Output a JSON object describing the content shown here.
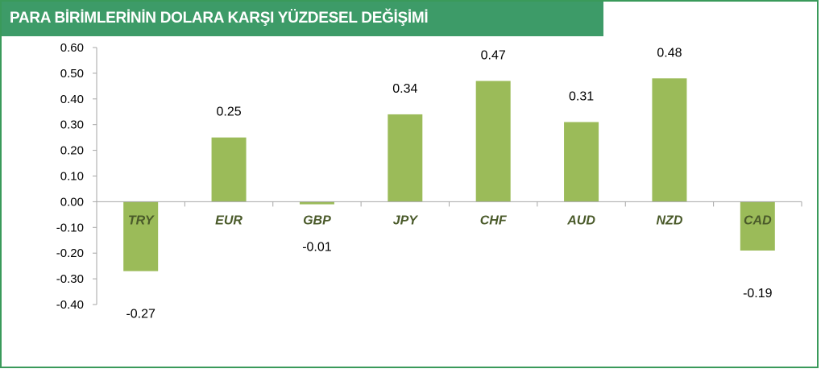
{
  "title": "PARA BİRİMLERİNİN DOLARA KARŞI YÜZDESEL DEĞİŞİMİ",
  "colors": {
    "bar": "#9bbb59",
    "header": "#3d9b68",
    "frame": "#3a9a5a",
    "axis": "#a6a6a6"
  },
  "chart_data": {
    "type": "bar",
    "title": "PARA BİRİMLERİNİN DOLARA KARŞI YÜZDESEL DEĞİŞİMİ",
    "categories": [
      "TRY",
      "EUR",
      "GBP",
      "JPY",
      "CHF",
      "AUD",
      "NZD",
      "CAD"
    ],
    "values": [
      -0.27,
      0.25,
      -0.01,
      0.34,
      0.47,
      0.31,
      0.48,
      -0.19
    ],
    "value_labels": [
      "-0.27",
      "0.25",
      "-0.01",
      "0.34",
      "0.47",
      "0.31",
      "0.48",
      "-0.19"
    ],
    "y_ticks": [
      "0.60",
      "0.50",
      "0.40",
      "0.30",
      "0.20",
      "0.10",
      "0.00",
      "-0.10",
      "-0.20",
      "-0.30",
      "-0.40"
    ],
    "ylim": [
      -0.4,
      0.6
    ],
    "grid": false,
    "legend": "none",
    "xlabel": "",
    "ylabel": ""
  }
}
